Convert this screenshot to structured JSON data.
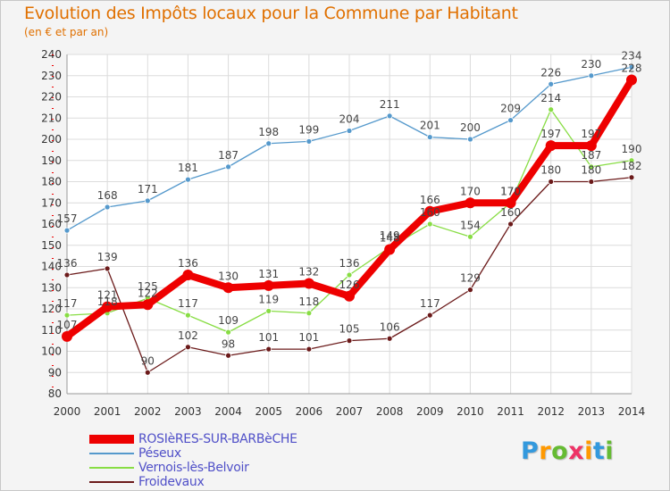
{
  "title": "Evolution des Impôts locaux pour la Commune par Habitant",
  "subtitle": "(en € et par an)",
  "chart_data": {
    "type": "line",
    "title": "Evolution des Impôts locaux pour la Commune par Habitant",
    "subtitle": "(en € et par an)",
    "xlabel": "",
    "ylabel": "",
    "x": [
      "2000",
      "2001",
      "2002",
      "2003",
      "2004",
      "2005",
      "2006",
      "2007",
      "2008",
      "2009",
      "2010",
      "2011",
      "2012",
      "2013",
      "2014"
    ],
    "ylim": [
      80,
      240
    ],
    "yticks": [
      80,
      90,
      100,
      110,
      120,
      130,
      140,
      150,
      160,
      170,
      180,
      190,
      200,
      210,
      220,
      230,
      240
    ],
    "grid": true,
    "legend_position": "bottom-left",
    "series": [
      {
        "name": "ROSIèRES-SUR-BARBèCHE",
        "color": "#ee0000",
        "values": [
          107,
          121,
          122,
          136,
          130,
          131,
          132,
          126,
          148,
          166,
          170,
          170,
          197,
          197,
          228
        ]
      },
      {
        "name": "Péseux",
        "color": "#5599cc",
        "values": [
          157,
          168,
          171,
          181,
          187,
          198,
          199,
          204,
          211,
          201,
          200,
          209,
          226,
          230,
          234
        ]
      },
      {
        "name": "Vernois-lès-Belvoir",
        "color": "#88dd44",
        "values": [
          117,
          118,
          125,
          117,
          109,
          119,
          118,
          136,
          149,
          160,
          154,
          170,
          214,
          187,
          190
        ]
      },
      {
        "name": "Froidevaux",
        "color": "#6b1a1a",
        "values": [
          136,
          139,
          90,
          102,
          98,
          101,
          101,
          105,
          106,
          117,
          129,
          160,
          180,
          180,
          182
        ]
      }
    ]
  },
  "logo": {
    "text": "Proxiti",
    "letters": [
      "P",
      "r",
      "o",
      "x",
      "i",
      "t",
      "i"
    ],
    "colors": [
      "#3399dd",
      "#ff9900",
      "#66bb33",
      "#ee3366",
      "#ff9900",
      "#3399dd",
      "#66bb33"
    ]
  }
}
